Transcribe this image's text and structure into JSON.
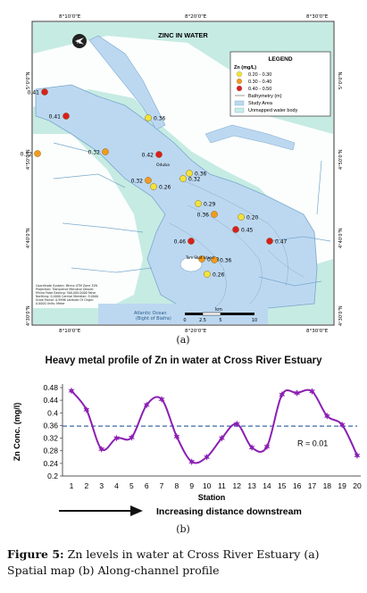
{
  "figure": {
    "panel_a_label": "(a)",
    "panel_b_label": "(b)",
    "caption_bold": "Figure 5:",
    "caption_text": " Zn levels in water at Cross River Estuary (a) Spatial map (b) Along-channel profile"
  },
  "map": {
    "title": "ZINC IN WATER",
    "top_coords": [
      "8°10'0\"E",
      "8°20'0\"E",
      "8°30'0\"E"
    ],
    "bottom_coords": [
      "8°10'0\"E",
      "8°20'0\"E",
      "8°30'0\"E"
    ],
    "left_coords": [
      "5°0'0\"N",
      "4°50'0\"N",
      "4°40'0\"N",
      "4°30'0\"N"
    ],
    "right_coords": [
      "5°0'0\"N",
      "4°50'0\"N",
      "4°40'0\"N",
      "4°30'0\"N"
    ],
    "legend": {
      "title": "LEGEND",
      "subtitle": "Zn (mg/L)",
      "items": [
        {
          "label": "0.20 - 0.30",
          "color": "#f2e23a"
        },
        {
          "label": "0.30 - 0.40",
          "color": "#f39a1f"
        },
        {
          "label": "0.40 - 0.50",
          "color": "#d91e1e"
        },
        {
          "label": "Bathymetry (m)",
          "color": "#9a9a9a"
        },
        {
          "label": "Study Area",
          "color": "#bcd9ef"
        },
        {
          "label": "Unmapped water body",
          "color": "#c8ece8"
        }
      ]
    },
    "stations": [
      {
        "v": "0.41",
        "c": "#d91e1e"
      },
      {
        "v": "0.41",
        "c": "#d91e1e"
      },
      {
        "v": "0.36",
        "c": "#f2e23a"
      },
      {
        "v": "0.32",
        "c": "#f39a1f"
      },
      {
        "v": "0.32",
        "c": "#f39a1f"
      },
      {
        "v": "0.42",
        "c": "#d91e1e"
      },
      {
        "v": "0.36",
        "c": "#f2e23a"
      },
      {
        "v": "0.32",
        "c": "#f2e23a"
      },
      {
        "v": "0.32",
        "c": "#f39a1f"
      },
      {
        "v": "0.26",
        "c": "#f2e23a"
      },
      {
        "v": "0.29",
        "c": "#f2e23a"
      },
      {
        "v": "0.36",
        "c": "#f39a1f"
      },
      {
        "v": "0.20",
        "c": "#f2e23a"
      },
      {
        "v": "0.45",
        "c": "#d91e1e"
      },
      {
        "v": "0.47",
        "c": "#d91e1e"
      },
      {
        "v": "0.46",
        "c": "#d91e1e"
      },
      {
        "v": "0.38",
        "c": "#f39a1f"
      },
      {
        "v": "0.36",
        "c": "#f39a1f"
      },
      {
        "v": "0.26",
        "c": "#f2e23a"
      }
    ],
    "place_labels": [
      "Oduba",
      "Tom Shot Island",
      "Atlantic Ocean",
      "(Bight of Biafra)"
    ],
    "scale_unit": "km",
    "scale_ticks": [
      "0",
      "2.5",
      "5",
      "10"
    ],
    "info_text": "Coordinate System: Minna UTM Zone 32N Projection: Transverse Mercator Datum: Minna False Easting: 500,000.0000 False Northing: 0.0000 Central Meridian: 9.0000 Scale Factor: 0.9996 Latitude Of Origin: 0.0000 Units: Meter",
    "colors": {
      "land": "#c6ebe3",
      "water": "#bcd8f1",
      "mangrove": "#ffffff",
      "frame": "#333333"
    }
  },
  "chart_data": {
    "type": "line",
    "title": "Heavy metal profile of Zn in water at Cross River Estuary",
    "xlabel": "Station",
    "ylabel": "Zn Conc. (mg/l)",
    "categories": [
      "1",
      "2",
      "3",
      "4",
      "5",
      "6",
      "7",
      "8",
      "9",
      "10",
      "11",
      "12",
      "13",
      "14",
      "15",
      "16",
      "17",
      "18",
      "19",
      "20"
    ],
    "series": [
      {
        "name": "",
        "values": [
          0.47,
          0.41,
          0.285,
          0.32,
          0.322,
          0.425,
          0.443,
          0.325,
          0.245,
          0.26,
          0.32,
          0.365,
          0.29,
          0.293,
          0.458,
          0.463,
          0.468,
          0.39,
          0.362,
          0.265
        ],
        "color": "#8b1fb3"
      }
    ],
    "mean_line": 0.358,
    "ylim": [
      0.2,
      0.48
    ],
    "yticks": [
      "0.2",
      "0.24",
      "0.28",
      "0.32",
      "0.36",
      "0.4",
      "0.44",
      "0.48"
    ],
    "annotation": "R = 0.01",
    "arrow_text": "Increasing distance downstream",
    "grid": false
  }
}
